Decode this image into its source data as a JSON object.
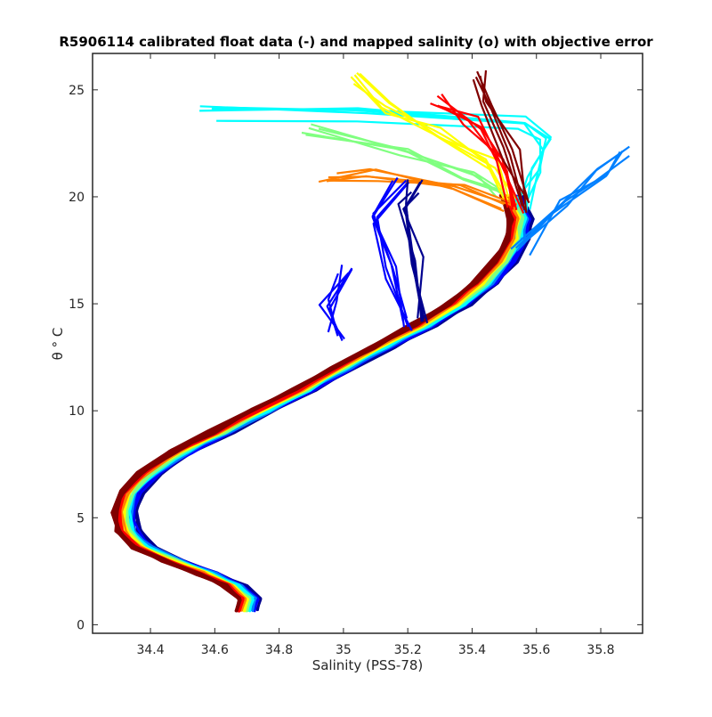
{
  "chart_data": {
    "type": "line",
    "title": "R5906114 calibrated float data (-) and mapped salinity (o) with objective error",
    "xlabel": "Salinity (PSS-78)",
    "ylabel": "θ ° C",
    "xlim": [
      34.22,
      35.93
    ],
    "ylim": [
      -0.4,
      26.7
    ],
    "xticks": [
      34.4,
      34.6,
      34.8,
      35,
      35.2,
      35.4,
      35.6,
      35.8
    ],
    "xtick_labels": [
      "34.4",
      "34.6",
      "34.8",
      "35",
      "35.2",
      "35.4",
      "35.6",
      "35.8"
    ],
    "yticks": [
      0,
      5,
      10,
      15,
      20,
      25
    ],
    "ytick_labels": [
      "0",
      "5",
      "10",
      "15",
      "20",
      "25"
    ],
    "grid": false,
    "colormap": [
      "#00008f",
      "#0000ff",
      "#0080ff",
      "#00ffff",
      "#80ff80",
      "#ffff00",
      "#ff8000",
      "#ff0000",
      "#800000"
    ],
    "series_count": 9,
    "common_profile": [
      {
        "s": 34.7,
        "t": 0.7
      },
      {
        "s": 34.71,
        "t": 1.2
      },
      {
        "s": 34.66,
        "t": 1.8
      },
      {
        "s": 34.58,
        "t": 2.4
      },
      {
        "s": 34.47,
        "t": 3.0
      },
      {
        "s": 34.38,
        "t": 3.6
      },
      {
        "s": 34.33,
        "t": 4.4
      },
      {
        "s": 34.32,
        "t": 5.3
      },
      {
        "s": 34.34,
        "t": 6.2
      },
      {
        "s": 34.4,
        "t": 7.1
      },
      {
        "s": 34.5,
        "t": 8.1
      },
      {
        "s": 34.62,
        "t": 9.0
      },
      {
        "s": 34.75,
        "t": 10.0
      },
      {
        "s": 34.88,
        "t": 11.0
      },
      {
        "s": 35.0,
        "t": 12.0
      },
      {
        "s": 35.12,
        "t": 13.0
      },
      {
        "s": 35.25,
        "t": 14.0
      },
      {
        "s": 35.36,
        "t": 15.0
      },
      {
        "s": 35.44,
        "t": 16.0
      },
      {
        "s": 35.5,
        "t": 17.0
      },
      {
        "s": 35.54,
        "t": 18.0
      },
      {
        "s": 35.55,
        "t": 19.0
      },
      {
        "s": 35.52,
        "t": 20.0
      }
    ],
    "surface_branches": [
      {
        "color": "#00ffff",
        "points": [
          {
            "s": 35.55,
            "t": 19.5
          },
          {
            "s": 35.6,
            "t": 21.0
          },
          {
            "s": 35.62,
            "t": 22.5
          },
          {
            "s": 35.55,
            "t": 23.5
          },
          {
            "s": 35.05,
            "t": 23.8
          },
          {
            "s": 34.58,
            "t": 23.9
          }
        ]
      },
      {
        "color": "#80ff80",
        "points": [
          {
            "s": 35.5,
            "t": 20.0
          },
          {
            "s": 35.4,
            "t": 21.0
          },
          {
            "s": 35.2,
            "t": 22.0
          },
          {
            "s": 34.9,
            "t": 23.1
          }
        ]
      },
      {
        "color": "#ffff00",
        "points": [
          {
            "s": 35.52,
            "t": 20.0
          },
          {
            "s": 35.45,
            "t": 21.5
          },
          {
            "s": 35.3,
            "t": 23.0
          },
          {
            "s": 35.12,
            "t": 24.2
          },
          {
            "s": 35.05,
            "t": 25.5
          }
        ]
      },
      {
        "color": "#ff8000",
        "points": [
          {
            "s": 35.52,
            "t": 19.5
          },
          {
            "s": 35.35,
            "t": 20.5
          },
          {
            "s": 35.1,
            "t": 21.0
          },
          {
            "s": 34.95,
            "t": 20.9
          }
        ]
      },
      {
        "color": "#ff0000",
        "points": [
          {
            "s": 35.54,
            "t": 19.5
          },
          {
            "s": 35.5,
            "t": 21.5
          },
          {
            "s": 35.4,
            "t": 23.5
          },
          {
            "s": 35.3,
            "t": 24.5
          }
        ]
      },
      {
        "color": "#800000",
        "points": [
          {
            "s": 35.55,
            "t": 19.5
          },
          {
            "s": 35.52,
            "t": 22.0
          },
          {
            "s": 35.45,
            "t": 24.5
          },
          {
            "s": 35.42,
            "t": 25.6
          }
        ]
      },
      {
        "color": "#0080ff",
        "points": [
          {
            "s": 35.55,
            "t": 17.5
          },
          {
            "s": 35.68,
            "t": 19.5
          },
          {
            "s": 35.8,
            "t": 21.0
          },
          {
            "s": 35.87,
            "t": 22.0
          }
        ]
      },
      {
        "color": "#0000ff",
        "points": [
          {
            "s": 35.2,
            "t": 14.0
          },
          {
            "s": 35.15,
            "t": 16.5
          },
          {
            "s": 35.12,
            "t": 19.0
          },
          {
            "s": 35.18,
            "t": 21.0
          }
        ]
      },
      {
        "color": "#00008f",
        "points": [
          {
            "s": 35.25,
            "t": 14.2
          },
          {
            "s": 35.22,
            "t": 17.0
          },
          {
            "s": 35.2,
            "t": 19.5
          },
          {
            "s": 35.22,
            "t": 20.5
          }
        ]
      },
      {
        "color": "#0000ff",
        "points": [
          {
            "s": 34.98,
            "t": 13.5
          },
          {
            "s": 34.95,
            "t": 15.0
          },
          {
            "s": 35.0,
            "t": 16.5
          }
        ]
      }
    ]
  }
}
